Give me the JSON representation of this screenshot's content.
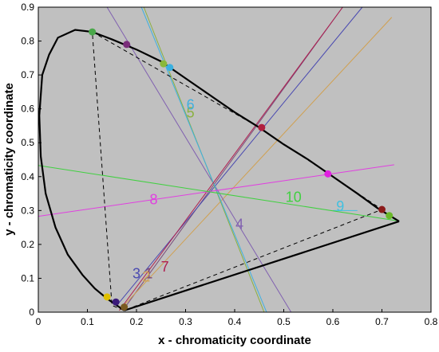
{
  "chart_data": {
    "type": "line",
    "title": "",
    "xlabel": "x - chromaticity coordinate",
    "ylabel": "y - chromaticity coordinate",
    "xlim": [
      0,
      0.8
    ],
    "ylim": [
      0,
      0.9
    ],
    "x_ticks": [
      "0",
      "0.1",
      "0.2",
      "0.3",
      "0.4",
      "0.5",
      "0.6",
      "0.7",
      "0.8"
    ],
    "y_ticks": [
      "0",
      "0.1",
      "0.2",
      "0.3",
      "0.4",
      "0.5",
      "0.6",
      "0.7",
      "0.8",
      "0.9"
    ],
    "grid": false,
    "background_color": "#c0c0c0",
    "white_point": [
      0.365,
      0.358
    ],
    "spectral_locus": [
      [
        0.175,
        0.005
      ],
      [
        0.16,
        0.02
      ],
      [
        0.14,
        0.04
      ],
      [
        0.115,
        0.07
      ],
      [
        0.09,
        0.11
      ],
      [
        0.06,
        0.17
      ],
      [
        0.035,
        0.25
      ],
      [
        0.015,
        0.35
      ],
      [
        0.005,
        0.46
      ],
      [
        0.002,
        0.58
      ],
      [
        0.008,
        0.7
      ],
      [
        0.022,
        0.76
      ],
      [
        0.04,
        0.81
      ],
      [
        0.075,
        0.833
      ],
      [
        0.11,
        0.827
      ],
      [
        0.15,
        0.805
      ],
      [
        0.2,
        0.775
      ],
      [
        0.25,
        0.74
      ],
      [
        0.3,
        0.69
      ],
      [
        0.35,
        0.64
      ],
      [
        0.4,
        0.59
      ],
      [
        0.45,
        0.545
      ],
      [
        0.5,
        0.495
      ],
      [
        0.55,
        0.45
      ],
      [
        0.6,
        0.4
      ],
      [
        0.65,
        0.35
      ],
      [
        0.69,
        0.308
      ],
      [
        0.735,
        0.268
      ]
    ],
    "purple_line": [
      [
        0.735,
        0.268
      ],
      [
        0.175,
        0.005
      ]
    ],
    "dashed_polygon": [
      [
        0.11,
        0.827
      ],
      [
        0.45,
        0.545
      ],
      [
        0.7,
        0.303
      ],
      [
        0.175,
        0.005
      ],
      [
        0.15,
        0.02
      ],
      [
        0.11,
        0.827
      ]
    ],
    "points": [
      {
        "x": 0.11,
        "y": 0.827,
        "color": "#4aa84a"
      },
      {
        "x": 0.18,
        "y": 0.79,
        "color": "#7a2e7a"
      },
      {
        "x": 0.255,
        "y": 0.733,
        "color": "#8ab83a"
      },
      {
        "x": 0.268,
        "y": 0.722,
        "color": "#3ab0e0"
      },
      {
        "x": 0.455,
        "y": 0.545,
        "color": "#b02040"
      },
      {
        "x": 0.59,
        "y": 0.408,
        "color": "#e020e0"
      },
      {
        "x": 0.7,
        "y": 0.303,
        "color": "#8b1a1a"
      },
      {
        "x": 0.715,
        "y": 0.285,
        "color": "#6ab82a"
      },
      {
        "x": 0.175,
        "y": 0.015,
        "color": "#7a5a20"
      },
      {
        "x": 0.14,
        "y": 0.045,
        "color": "#e0c000"
      },
      {
        "x": 0.158,
        "y": 0.03,
        "color": "#3a1a7a"
      }
    ],
    "series": [
      {
        "name": "1",
        "color": "#7a4a7a",
        "p1": [
          0.172,
          0.005
        ],
        "p2": [
          0.62,
          0.9
        ],
        "label_at": [
          0.225,
          0.1
        ]
      },
      {
        "name": "2",
        "color": "#d0a050",
        "p1": [
          0.165,
          0.005
        ],
        "p2": [
          0.72,
          0.87
        ],
        "label_at": [
          0.22,
          0.09
        ]
      },
      {
        "name": "3",
        "color": "#4a4ab0",
        "p1": [
          0.16,
          0.02
        ],
        "p2": [
          0.66,
          0.9
        ],
        "label_at": [
          0.2,
          0.1
        ]
      },
      {
        "name": "4",
        "color": "#8060b0",
        "p1": [
          0.14,
          0.9
        ],
        "p2": [
          0.515,
          0.0
        ],
        "label_at": [
          0.41,
          0.245
        ]
      },
      {
        "name": "5",
        "color": "#8ab040",
        "p1": [
          0.215,
          0.9
        ],
        "p2": [
          0.46,
          0.0
        ],
        "label_at": [
          0.31,
          0.575
        ]
      },
      {
        "name": "6",
        "color": "#40b0e0",
        "p1": [
          0.21,
          0.9
        ],
        "p2": [
          0.465,
          0.0
        ],
        "label_at": [
          0.31,
          0.598
        ]
      },
      {
        "name": "7",
        "color": "#b02050",
        "p1": [
          0.165,
          0.005
        ],
        "p2": [
          0.62,
          0.9
        ],
        "label_at": [
          0.258,
          0.12
        ]
      },
      {
        "name": "8",
        "color": "#e040e0",
        "p1": [
          0.0,
          0.283
        ],
        "p2": [
          0.725,
          0.435
        ],
        "label_at": [
          0.235,
          0.318
        ]
      },
      {
        "name": "9",
        "color": "#40c0e0",
        "p1": [
          0.6,
          0.3
        ],
        "p2": [
          0.65,
          0.3
        ],
        "label_at": [
          0.615,
          0.298
        ]
      },
      {
        "name": "10",
        "color": "#40d040",
        "p1": [
          0.0,
          0.433
        ],
        "p2": [
          0.73,
          0.27
        ],
        "label_at": [
          0.52,
          0.325
        ]
      }
    ]
  }
}
